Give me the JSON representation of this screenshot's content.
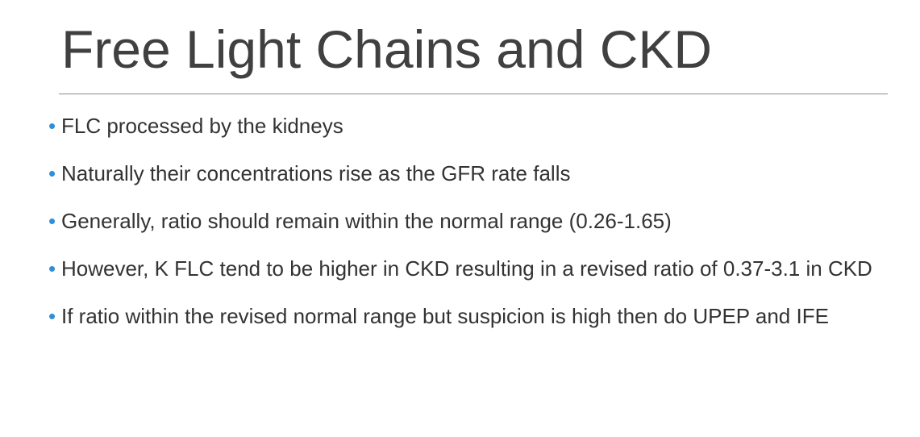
{
  "slide": {
    "title": "Free Light Chains and CKD",
    "bullet_marker": "•",
    "bullet_color": "#2f8fd8",
    "bullets": [
      "FLC processed by the kidneys",
      "Naturally their concentrations rise as the GFR rate falls",
      "Generally, ratio should remain within the normal range (0.26-1.65)",
      "However, K FLC tend to be higher in CKD resulting in a revised ratio of 0.37-3.1 in CKD",
      "If ratio within the revised normal range but suspicion is high then do UPEP and IFE"
    ]
  }
}
